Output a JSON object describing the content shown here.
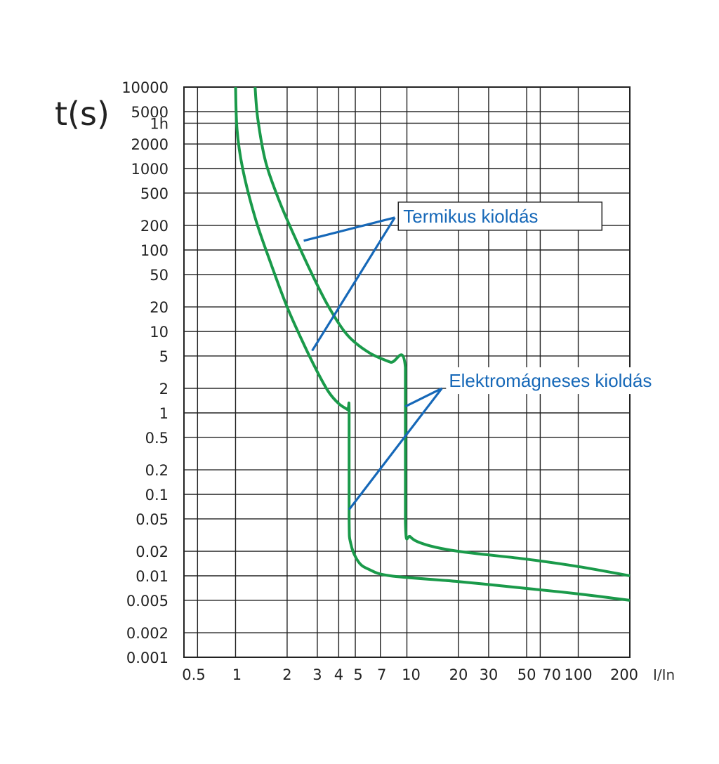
{
  "chart_data": {
    "type": "line",
    "ylabel": "t(s)",
    "xlabel": "I/In",
    "x_scale": "log",
    "y_scale": "log",
    "y_ticks": [
      {
        "v": 10000,
        "label": "10000"
      },
      {
        "v": 5000,
        "label": "5000"
      },
      {
        "v": 3600,
        "label": "1h"
      },
      {
        "v": 2000,
        "label": "2000"
      },
      {
        "v": 1000,
        "label": "1000"
      },
      {
        "v": 500,
        "label": "500"
      },
      {
        "v": 200,
        "label": "200"
      },
      {
        "v": 100,
        "label": "100"
      },
      {
        "v": 50,
        "label": "50"
      },
      {
        "v": 20,
        "label": "20"
      },
      {
        "v": 10,
        "label": "10"
      },
      {
        "v": 5,
        "label": "5"
      },
      {
        "v": 2,
        "label": "2"
      },
      {
        "v": 1,
        "label": "1"
      },
      {
        "v": 0.5,
        "label": "0.5"
      },
      {
        "v": 0.2,
        "label": "0.2"
      },
      {
        "v": 0.1,
        "label": "0.1"
      },
      {
        "v": 0.05,
        "label": "0.05"
      },
      {
        "v": 0.02,
        "label": "0.02"
      },
      {
        "v": 0.01,
        "label": "0.01"
      },
      {
        "v": 0.005,
        "label": "0.005"
      },
      {
        "v": 0.002,
        "label": "0.002"
      },
      {
        "v": 0.001,
        "label": "0.001"
      }
    ],
    "x_ticks": [
      {
        "v": 0.5,
        "label": "0.5"
      },
      {
        "v": 1,
        "label": "1"
      },
      {
        "v": 2,
        "label": "2"
      },
      {
        "v": 3,
        "label": "3"
      },
      {
        "v": 4,
        "label": "4"
      },
      {
        "v": 5,
        "label": "5"
      },
      {
        "v": 7,
        "label": "7"
      },
      {
        "v": 10,
        "label": "10"
      },
      {
        "v": 20,
        "label": "20"
      },
      {
        "v": 30,
        "label": "30"
      },
      {
        "v": 50,
        "label": "50"
      },
      {
        "v": 70,
        "label": "70"
      },
      {
        "v": 100,
        "label": "100"
      },
      {
        "v": 200,
        "label": "200"
      }
    ],
    "series": [
      {
        "color": "#1a9a4a",
        "points": [
          [
            1.0,
            10000
          ],
          [
            1.02,
            3000
          ],
          [
            1.1,
            1000
          ],
          [
            1.3,
            250
          ],
          [
            1.6,
            70
          ],
          [
            2.0,
            20
          ],
          [
            2.5,
            7
          ],
          [
            3.0,
            3.2
          ],
          [
            3.5,
            1.8
          ],
          [
            4.0,
            1.3
          ],
          [
            4.5,
            1.1
          ],
          [
            4.6,
            1.05
          ],
          [
            4.6,
            0.05
          ],
          [
            4.7,
            0.025
          ],
          [
            5.2,
            0.015
          ],
          [
            6.0,
            0.012
          ],
          [
            8.0,
            0.01
          ],
          [
            20,
            0.0085
          ],
          [
            50,
            0.007
          ],
          [
            100,
            0.006
          ],
          [
            200,
            0.005
          ]
        ]
      },
      {
        "color": "#1a9a4a",
        "points": [
          [
            1.3,
            10000
          ],
          [
            1.35,
            4000
          ],
          [
            1.5,
            1200
          ],
          [
            1.8,
            400
          ],
          [
            2.2,
            150
          ],
          [
            2.8,
            50
          ],
          [
            3.5,
            20
          ],
          [
            4.5,
            9
          ],
          [
            6.0,
            5.5
          ],
          [
            8.0,
            4.2
          ],
          [
            9.8,
            3.6
          ],
          [
            9.8,
            0.045
          ],
          [
            10.5,
            0.03
          ],
          [
            13,
            0.024
          ],
          [
            20,
            0.02
          ],
          [
            50,
            0.016
          ],
          [
            100,
            0.013
          ],
          [
            200,
            0.01
          ]
        ]
      }
    ],
    "annotations": [
      {
        "text": "Termikus kioldás",
        "color": "#1668b8",
        "boxed": true,
        "anchor": [
          8.5,
          250
        ],
        "targets": [
          [
            2.5,
            130
          ],
          [
            2.8,
            5.8
          ]
        ]
      },
      {
        "text": "Elektromágneses kioldás",
        "color": "#1668b8",
        "boxed": false,
        "anchor": [
          16,
          2.0
        ],
        "targets": [
          [
            9.8,
            1.2
          ],
          [
            4.6,
            0.065
          ]
        ]
      }
    ],
    "xlim": [
      0.5,
      200
    ],
    "ylim": [
      0.001,
      10000
    ],
    "grid": true
  }
}
